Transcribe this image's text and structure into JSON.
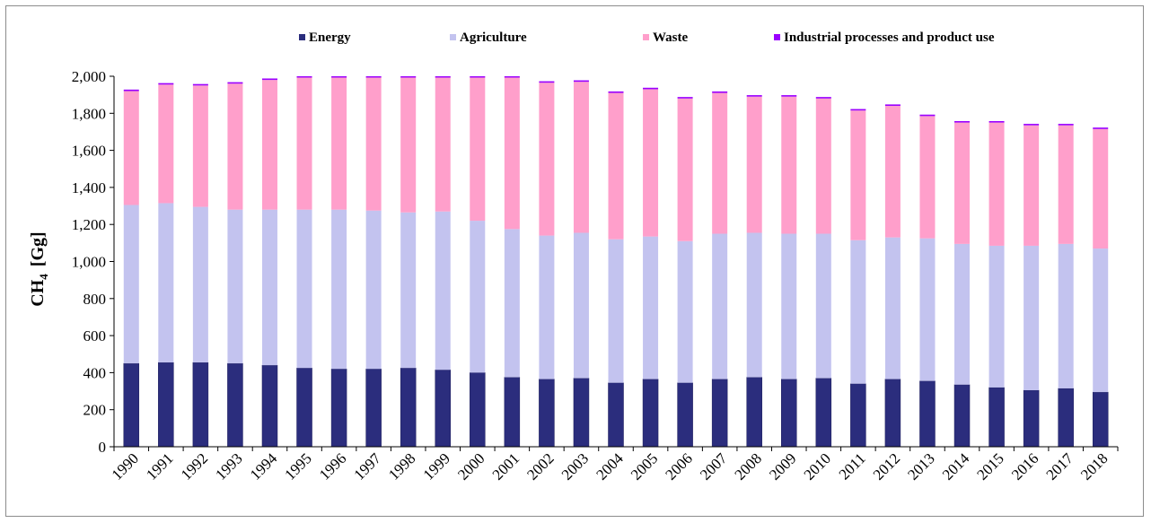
{
  "chart_data": {
    "type": "bar",
    "stacked": true,
    "ylabel_main": "CH",
    "ylabel_sub": "4",
    "ylabel_unit": "[Gg]",
    "ylim": [
      0,
      2000
    ],
    "ytick_step": 200,
    "yticks": [
      "0",
      "200",
      "400",
      "600",
      "800",
      "1,000",
      "1,200",
      "1,400",
      "1,600",
      "1,800",
      "2,000"
    ],
    "grid": false,
    "legend_position": "top",
    "categories": [
      "1990",
      "1991",
      "1992",
      "1993",
      "1994",
      "1995",
      "1996",
      "1997",
      "1998",
      "1999",
      "2000",
      "2001",
      "2002",
      "2003",
      "2004",
      "2005",
      "2006",
      "2007",
      "2008",
      "2009",
      "2010",
      "2011",
      "2012",
      "2013",
      "2014",
      "2015",
      "2016",
      "2017",
      "2018"
    ],
    "series": [
      {
        "name": "Energy",
        "color": "#2b2d7d",
        "values": [
          450,
          455,
          455,
          450,
          440,
          425,
          420,
          420,
          425,
          415,
          400,
          375,
          365,
          370,
          345,
          365,
          345,
          365,
          375,
          365,
          370,
          340,
          365,
          355,
          335,
          320,
          305,
          315,
          295
        ]
      },
      {
        "name": "Agriculture",
        "color": "#c3c3ef",
        "values": [
          855,
          860,
          840,
          830,
          840,
          855,
          860,
          855,
          840,
          855,
          820,
          800,
          775,
          785,
          775,
          770,
          765,
          785,
          780,
          785,
          780,
          775,
          765,
          770,
          760,
          765,
          780,
          780,
          775
        ]
      },
      {
        "name": "Waste",
        "color": "#ff9fcb",
        "values": [
          615,
          640,
          655,
          680,
          700,
          735,
          745,
          755,
          775,
          805,
          835,
          865,
          825,
          815,
          790,
          795,
          770,
          760,
          735,
          740,
          730,
          700,
          710,
          660,
          655,
          665,
          650,
          640,
          645
        ]
      },
      {
        "name": "Industrial processes and product use",
        "color": "#9b00ff",
        "values": [
          8,
          8,
          8,
          8,
          8,
          8,
          8,
          8,
          8,
          8,
          8,
          8,
          8,
          8,
          8,
          8,
          8,
          8,
          8,
          8,
          8,
          8,
          8,
          8,
          8,
          8,
          8,
          8,
          8
        ]
      }
    ]
  }
}
